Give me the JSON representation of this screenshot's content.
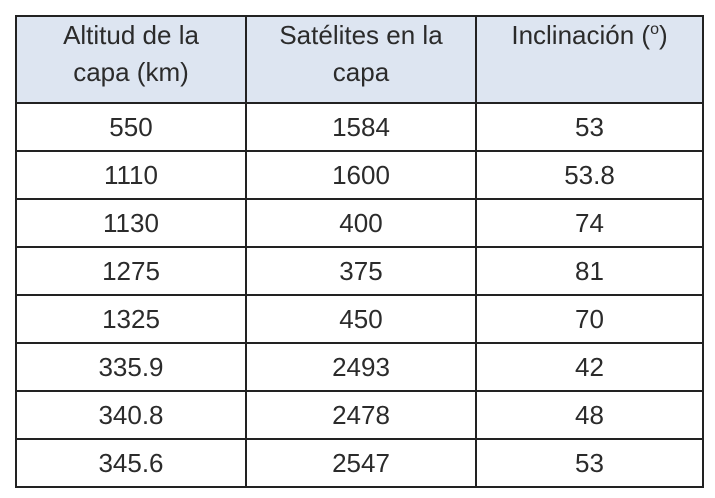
{
  "table": {
    "header": [
      [
        "Altitud de la",
        "capa (km)"
      ],
      [
        "Satélites en la",
        "capa"
      ],
      [
        "Inclinación (",
        "o",
        ")"
      ]
    ],
    "rows": [
      [
        550,
        1584,
        53
      ],
      [
        1110,
        1600,
        53.8
      ],
      [
        1130,
        400,
        74
      ],
      [
        1275,
        375,
        81
      ],
      [
        1325,
        450,
        70
      ],
      [
        335.9,
        2493,
        42
      ],
      [
        340.8,
        2478,
        48
      ],
      [
        345.6,
        2547,
        53
      ]
    ]
  }
}
